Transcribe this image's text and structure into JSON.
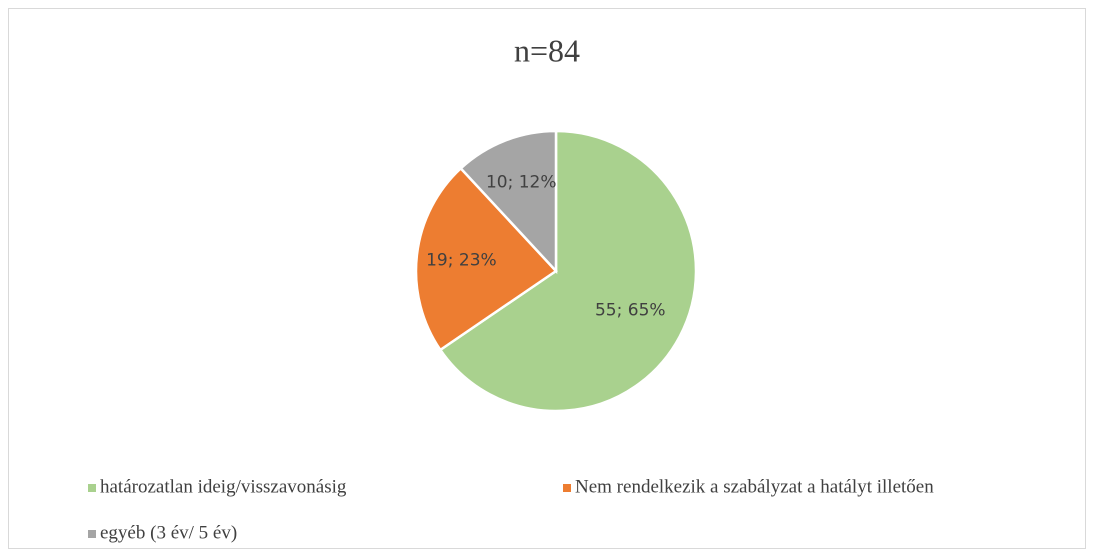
{
  "chart_data": {
    "type": "pie",
    "title": "n=84",
    "categories": [
      "határozatlan ideig/visszavonásig",
      "Nem rendelkezik a szabályzat a hatályt illetően",
      "egyéb (3 év/ 5 év)"
    ],
    "values": [
      55,
      19,
      10
    ],
    "value_labels": [
      "55; 65%",
      "19; 23%",
      "10; 12%"
    ],
    "colors": [
      "#a9d18e",
      "#ed7d31",
      "#a5a5a5"
    ],
    "legend": "bottom"
  }
}
